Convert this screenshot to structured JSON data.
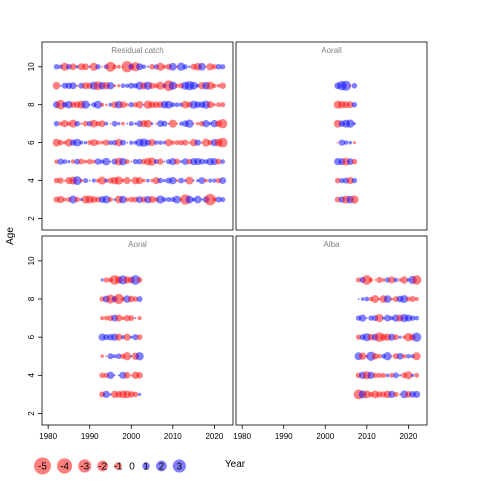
{
  "chart_data": {
    "type": "scatter",
    "kind": "bubble-residual-plot",
    "ylabel": "Age",
    "xlabel": "Year",
    "x_ticks": [
      1980,
      1990,
      2000,
      2010,
      2020
    ],
    "y_ticks": [
      2,
      4,
      6,
      8,
      10
    ],
    "xlim": [
      1979,
      2024
    ],
    "ylim": [
      1.5,
      11.2
    ],
    "colors": {
      "positive": "#0000ff",
      "negative": "#ff0000"
    },
    "panels": [
      {
        "title": "Residual catch",
        "layout_row": "top",
        "layout_col": "left",
        "year_start": 1982,
        "year_end": 2022,
        "ages": [
          3,
          4,
          5,
          6,
          7,
          8,
          9,
          10
        ],
        "seed": 11,
        "highlights": [
          {
            "year": 1999,
            "age": 10,
            "value": -2.9
          },
          {
            "year": 1995,
            "age": 10,
            "value": -2.3
          },
          {
            "year": 2009,
            "age": 9,
            "value": -2.6
          },
          {
            "year": 2019,
            "age": 3,
            "value": -3.0
          },
          {
            "year": 2013,
            "age": 3,
            "value": -2.5
          },
          {
            "year": 1983,
            "age": 8,
            "value": -2.1
          },
          {
            "year": 2022,
            "age": 6,
            "value": -2.2
          },
          {
            "year": 2022,
            "age": 7,
            "value": -2.0
          },
          {
            "year": 1992,
            "age": 9,
            "value": -1.8
          },
          {
            "year": 1987,
            "age": 4,
            "value": 1.8
          },
          {
            "year": 2014,
            "age": 9,
            "value": 2.0
          },
          {
            "year": 2001,
            "age": 10,
            "value": -2.0
          }
        ]
      },
      {
        "title": "Aorall",
        "layout_row": "top",
        "layout_col": "right",
        "year_start": 2003,
        "year_end": 2007,
        "ages": [
          3,
          4,
          5,
          6,
          7,
          8,
          9
        ],
        "seed": 22,
        "highlights": [
          {
            "year": 2004,
            "age": 9,
            "value": 2.0
          },
          {
            "year": 2005,
            "age": 9,
            "value": 2.3
          },
          {
            "year": 2007,
            "age": 3,
            "value": -1.6
          },
          {
            "year": 2003,
            "age": 8,
            "value": -1.5
          }
        ]
      },
      {
        "title": "Aoral",
        "layout_row": "bottom",
        "layout_col": "left",
        "year_start": 1993,
        "year_end": 2002,
        "ages": [
          3,
          4,
          5,
          6,
          7,
          8,
          9
        ],
        "seed": 33,
        "highlights": [
          {
            "year": 1997,
            "age": 8,
            "value": -2.4
          },
          {
            "year": 1995,
            "age": 8,
            "value": -1.9
          },
          {
            "year": 1996,
            "age": 9,
            "value": -2.2
          },
          {
            "year": 2001,
            "age": 9,
            "value": 2.2
          },
          {
            "year": 1998,
            "age": 9,
            "value": 1.9
          }
        ]
      },
      {
        "title": "Alba",
        "layout_row": "bottom",
        "layout_col": "right",
        "year_start": 2008,
        "year_end": 2022,
        "ages": [
          3,
          4,
          5,
          6,
          7,
          8,
          9
        ],
        "seed": 44,
        "highlights": [
          {
            "year": 2008,
            "age": 3,
            "value": -2.2
          },
          {
            "year": 2010,
            "age": 9,
            "value": -2.2
          },
          {
            "year": 2013,
            "age": 6,
            "value": -2.1
          },
          {
            "year": 2022,
            "age": 9,
            "value": -2.0
          },
          {
            "year": 2022,
            "age": 6,
            "value": 2.0
          },
          {
            "year": 2011,
            "age": 5,
            "value": 2.0
          }
        ]
      }
    ],
    "legend": {
      "placement": "bottom-left",
      "values": [
        -5,
        -4,
        -3,
        -2,
        -1,
        0,
        1,
        2,
        3
      ]
    }
  }
}
